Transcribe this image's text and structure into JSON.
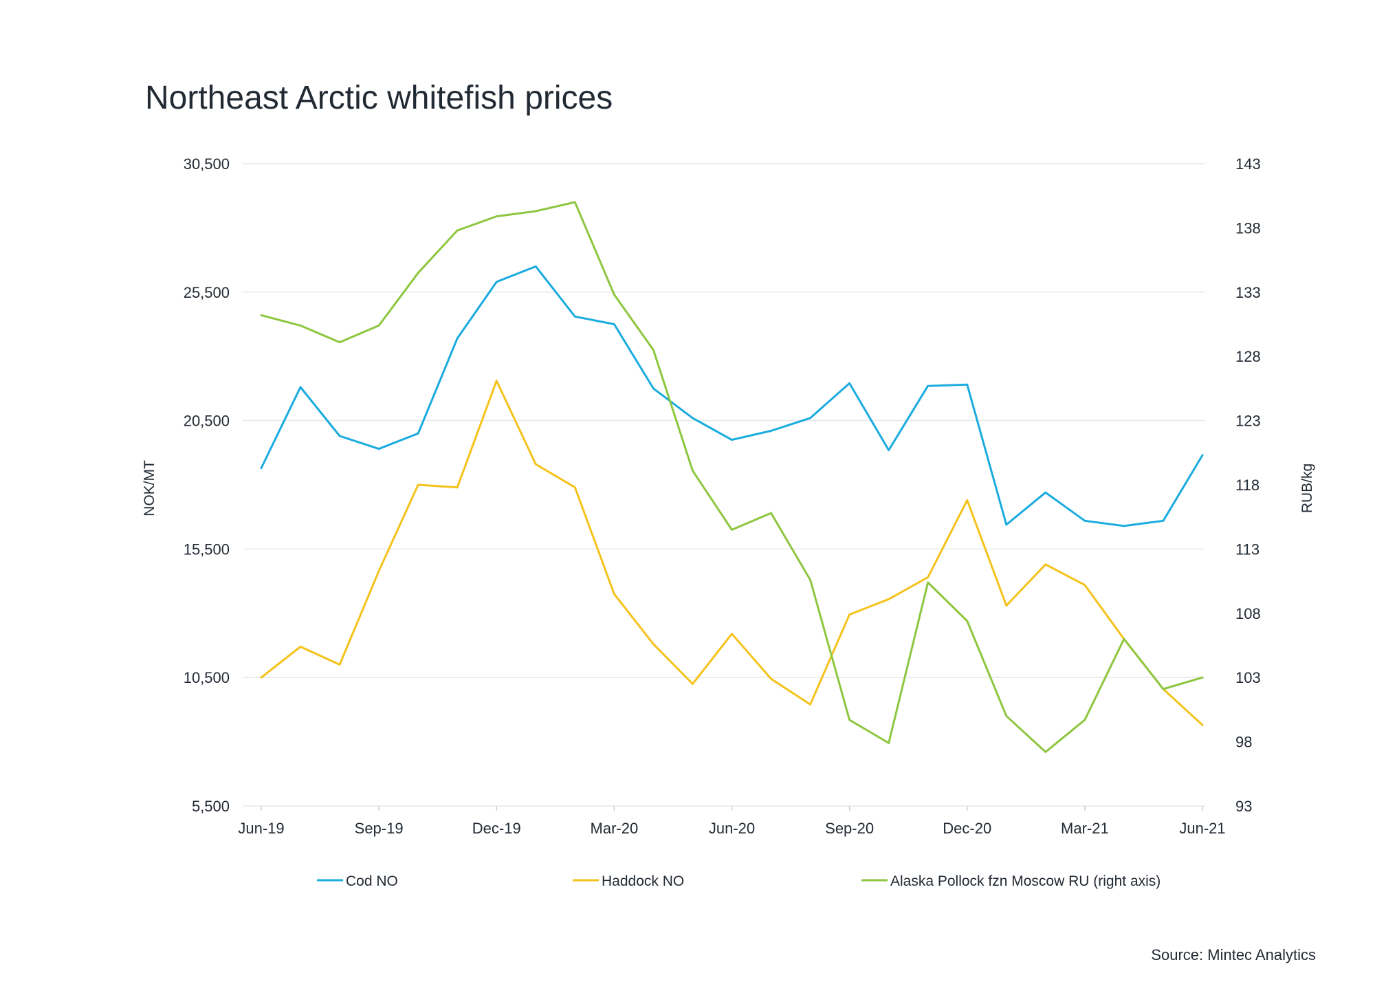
{
  "chart_data": {
    "type": "line",
    "title": "Northeast Arctic whitefish prices",
    "ylabel": "NOK/MT",
    "y2label": "RUB/kg",
    "source": "Source: Mintec Analytics",
    "ylim": [
      5500,
      30500
    ],
    "y2lim": [
      93,
      143
    ],
    "yticks": [
      "30,500",
      "25,500",
      "20,500",
      "15,500",
      "10,500",
      "5,500"
    ],
    "y2ticks": [
      "143",
      "138",
      "133",
      "128",
      "123",
      "118",
      "113",
      "108",
      "103",
      "98",
      "93"
    ],
    "xticks": [
      "Jun-19",
      "Sep-19",
      "Dec-19",
      "Mar-20",
      "Jun-20",
      "Sep-20",
      "Dec-20",
      "Mar-21",
      "Jun-21"
    ],
    "x": [
      "Jun-19",
      "Jul-19",
      "Aug-19",
      "Sep-19",
      "Oct-19",
      "Nov-19",
      "Dec-19",
      "Jan-20",
      "Feb-20",
      "Mar-20",
      "Apr-20",
      "May-20",
      "Jun-20",
      "Jul-20",
      "Aug-20",
      "Sep-20",
      "Oct-20",
      "Nov-20",
      "Dec-20",
      "Jan-21",
      "Feb-21",
      "Mar-21",
      "Apr-21",
      "May-21",
      "Jun-21"
    ],
    "grid": true,
    "legend_position": "bottom",
    "series": [
      {
        "name": "Cod NO",
        "axis": "left",
        "color": "#1aabdf",
        "values": [
          18650,
          21800,
          19900,
          19400,
          20000,
          23700,
          25900,
          26500,
          24550,
          24250,
          21750,
          20600,
          19750,
          20100,
          20600,
          21950,
          19350,
          21850,
          21900,
          16450,
          17700,
          16600,
          16400,
          16600,
          19150
        ]
      },
      {
        "name": "Haddock NO",
        "axis": "left",
        "color": "#f5c21b",
        "values": [
          10500,
          11700,
          11000,
          14650,
          18000,
          17900,
          22050,
          18800,
          17900,
          13750,
          11800,
          10250,
          12200,
          10450,
          9450,
          12950,
          13550,
          14400,
          17400,
          13300,
          14900,
          14100,
          12000,
          10050,
          8650
        ]
      },
      {
        "name": "Alaska Pollock fzn Moscow RU (right axis)",
        "axis": "right",
        "color": "#8dc63f",
        "values": [
          131.2,
          130.4,
          129.1,
          130.4,
          134.5,
          137.8,
          138.9,
          139.3,
          140.0,
          132.8,
          128.5,
          119.1,
          114.5,
          115.8,
          110.6,
          99.7,
          97.9,
          110.4,
          107.4,
          100.0,
          97.2,
          99.7,
          106.0,
          102.1,
          103.0
        ]
      }
    ]
  }
}
